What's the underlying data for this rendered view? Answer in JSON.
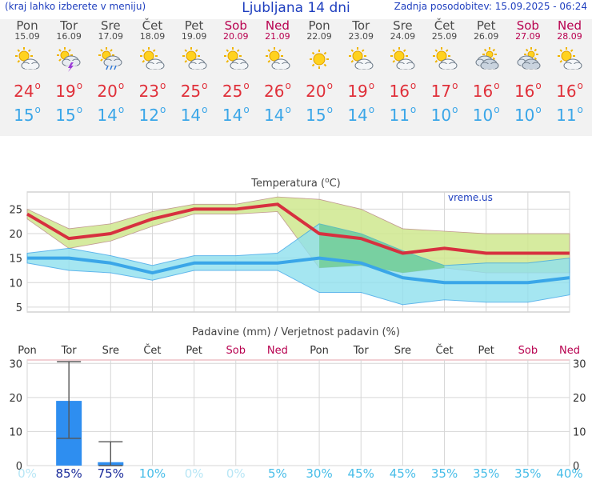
{
  "header": {
    "menu_hint": "(kraj lahko izberete v meniju)",
    "title": "Ljubljana 14 dni",
    "updated": "Zadnja posodobitev: 15.09.2025 - 06:24"
  },
  "days": [
    {
      "name": "Pon",
      "date": "15.09",
      "weekend": false,
      "icon": "sun-cloud-icon",
      "max": "24",
      "min": "15"
    },
    {
      "name": "Tor",
      "date": "16.09",
      "weekend": false,
      "icon": "thunderstorm-icon",
      "max": "19",
      "min": "15"
    },
    {
      "name": "Sre",
      "date": "17.09",
      "weekend": false,
      "icon": "sun-rain-icon",
      "max": "20",
      "min": "14"
    },
    {
      "name": "Čet",
      "date": "18.09",
      "weekend": false,
      "icon": "sun-cloud-icon",
      "max": "23",
      "min": "12"
    },
    {
      "name": "Pet",
      "date": "19.09",
      "weekend": false,
      "icon": "sun-cloud-icon",
      "max": "25",
      "min": "14"
    },
    {
      "name": "Sob",
      "date": "20.09",
      "weekend": true,
      "icon": "sun-cloud-icon",
      "max": "25",
      "min": "14"
    },
    {
      "name": "Ned",
      "date": "21.09",
      "weekend": true,
      "icon": "sun-cloud-icon",
      "max": "26",
      "min": "14"
    },
    {
      "name": "Pon",
      "date": "22.09",
      "weekend": false,
      "icon": "sun-icon",
      "max": "20",
      "min": "15"
    },
    {
      "name": "Tor",
      "date": "23.09",
      "weekend": false,
      "icon": "sun-cloud-icon",
      "max": "19",
      "min": "14"
    },
    {
      "name": "Sre",
      "date": "24.09",
      "weekend": false,
      "icon": "sun-cloud-icon",
      "max": "16",
      "min": "11"
    },
    {
      "name": "Čet",
      "date": "25.09",
      "weekend": false,
      "icon": "sun-cloud-icon",
      "max": "17",
      "min": "10"
    },
    {
      "name": "Pet",
      "date": "26.09",
      "weekend": false,
      "icon": "cloud-icon",
      "max": "16",
      "min": "10"
    },
    {
      "name": "Sob",
      "date": "27.09",
      "weekend": true,
      "icon": "cloud-icon",
      "max": "16",
      "min": "10"
    },
    {
      "name": "Ned",
      "date": "28.09",
      "weekend": true,
      "icon": "sun-cloud-icon",
      "max": "16",
      "min": "11"
    }
  ],
  "degree_symbol": "o",
  "colors": {
    "max_line": "#d7303f",
    "min_line": "#3aa6e8",
    "max_band": "#cfe88f",
    "min_band": "#8fe0ee",
    "overlap": "#6cc98c",
    "weekend": "#b8004f",
    "header_blue": "#1f3fbf",
    "precip_bar": "#2e8ef0"
  },
  "chart_data": [
    {
      "type": "line",
      "title": "Temperatura (°C)",
      "watermark": "vreme.us",
      "x": [
        1,
        2,
        3,
        4,
        5,
        6,
        7,
        8,
        9,
        10,
        11,
        12,
        13,
        14
      ],
      "ylim": [
        4,
        28.5
      ],
      "yticks": [
        "5",
        "10",
        "15",
        "20",
        "25"
      ],
      "grid": true,
      "series": [
        {
          "name": "max",
          "values": [
            24,
            19,
            20,
            23,
            25,
            25,
            26,
            20,
            19,
            16,
            17,
            16,
            16,
            16
          ]
        },
        {
          "name": "max_upper",
          "values": [
            25,
            21,
            22,
            24.5,
            26,
            26,
            27.5,
            27,
            25,
            21,
            20.5,
            20,
            20,
            20
          ]
        },
        {
          "name": "max_lower",
          "values": [
            23,
            17,
            18.5,
            21.5,
            24,
            24,
            24.5,
            13,
            13.5,
            12,
            13,
            12,
            12,
            12
          ]
        },
        {
          "name": "min",
          "values": [
            15,
            15,
            14,
            12,
            14,
            14,
            14,
            15,
            14,
            11,
            10,
            10,
            10,
            11
          ]
        },
        {
          "name": "min_upper",
          "values": [
            16,
            17,
            15.5,
            13.5,
            15.5,
            15.5,
            16,
            22,
            20,
            16.5,
            13.5,
            14,
            14,
            15
          ]
        },
        {
          "name": "min_lower",
          "values": [
            14,
            12.5,
            12,
            10.5,
            12.5,
            12.5,
            12.5,
            8,
            8,
            5.5,
            6.5,
            6,
            6,
            7.5
          ]
        }
      ]
    },
    {
      "type": "bar",
      "title": "Padavine (mm) / Verjetnost padavin (%)",
      "categories": [
        "Pon",
        "Tor",
        "Sre",
        "Čet",
        "Pet",
        "Sob",
        "Ned",
        "Pon",
        "Tor",
        "Sre",
        "Čet",
        "Pet",
        "Sob",
        "Ned"
      ],
      "weekend": [
        false,
        false,
        false,
        false,
        false,
        true,
        true,
        false,
        false,
        false,
        false,
        false,
        true,
        true
      ],
      "values": [
        0,
        19,
        1,
        0,
        0,
        0,
        0,
        0,
        0,
        0,
        0,
        0,
        0,
        0
      ],
      "error_low": [
        null,
        8,
        0,
        null,
        null,
        null,
        null,
        null,
        null,
        null,
        null,
        null,
        null,
        null
      ],
      "error_high": [
        null,
        30.5,
        7,
        null,
        null,
        null,
        null,
        null,
        null,
        null,
        null,
        null,
        null,
        null
      ],
      "probability": [
        "0%",
        "85%",
        "75%",
        "10%",
        "0%",
        "0%",
        "5%",
        "30%",
        "45%",
        "45%",
        "35%",
        "35%",
        "35%",
        "40%"
      ],
      "probability_values": [
        0,
        85,
        75,
        10,
        0,
        0,
        5,
        30,
        45,
        45,
        35,
        35,
        35,
        40
      ],
      "ylim": [
        0,
        31
      ],
      "yticks": [
        "0",
        "10",
        "20",
        "30"
      ],
      "grid": true
    }
  ]
}
